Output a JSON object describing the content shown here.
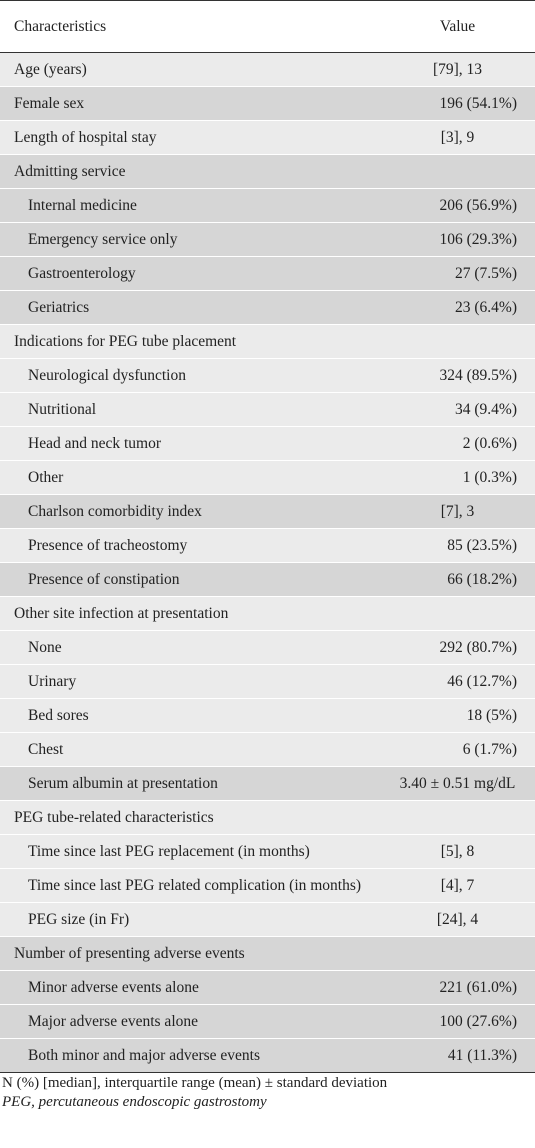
{
  "table": {
    "headers": {
      "characteristics": "Characteristics",
      "value": "Value"
    },
    "rows": [
      {
        "label": "Age (years)",
        "value": "[79], 13",
        "indent": false,
        "shade": "light",
        "align": "center"
      },
      {
        "label": "Female sex",
        "value": "196 (54.1%)",
        "indent": false,
        "shade": "shade",
        "align": "right"
      },
      {
        "label": "Length of hospital stay",
        "value": "[3], 9",
        "indent": false,
        "shade": "light",
        "align": "center"
      },
      {
        "label": "Admitting service",
        "value": "",
        "indent": false,
        "shade": "shade",
        "align": "right"
      },
      {
        "label": "Internal medicine",
        "value": "206 (56.9%)",
        "indent": true,
        "shade": "shade",
        "align": "right"
      },
      {
        "label": "Emergency service only",
        "value": "106 (29.3%)",
        "indent": true,
        "shade": "shade",
        "align": "right"
      },
      {
        "label": "Gastroenterology",
        "value": "27 (7.5%)",
        "indent": true,
        "shade": "shade",
        "align": "right"
      },
      {
        "label": "Geriatrics",
        "value": "23 (6.4%)",
        "indent": true,
        "shade": "shade",
        "align": "right"
      },
      {
        "label": "Indications for PEG tube placement",
        "value": "",
        "indent": false,
        "shade": "light",
        "align": "right"
      },
      {
        "label": "Neurological dysfunction",
        "value": "324 (89.5%)",
        "indent": true,
        "shade": "light",
        "align": "right"
      },
      {
        "label": "Nutritional",
        "value": "34 (9.4%)",
        "indent": true,
        "shade": "light",
        "align": "right"
      },
      {
        "label": "Head and neck tumor",
        "value": "2 (0.6%)",
        "indent": true,
        "shade": "light",
        "align": "right"
      },
      {
        "label": "Other",
        "value": "1 (0.3%)",
        "indent": true,
        "shade": "light",
        "align": "right"
      },
      {
        "label": "Charlson comorbidity index",
        "value": "[7], 3",
        "indent": true,
        "shade": "shade",
        "align": "center"
      },
      {
        "label": "Presence of tracheostomy",
        "value": "85 (23.5%)",
        "indent": true,
        "shade": "light",
        "align": "right"
      },
      {
        "label": "Presence of constipation",
        "value": "66 (18.2%)",
        "indent": true,
        "shade": "shade",
        "align": "right"
      },
      {
        "label": "Other site infection at presentation",
        "value": "",
        "indent": false,
        "shade": "light",
        "align": "right"
      },
      {
        "label": "None",
        "value": "292 (80.7%)",
        "indent": true,
        "shade": "light",
        "align": "right"
      },
      {
        "label": "Urinary",
        "value": "46 (12.7%)",
        "indent": true,
        "shade": "light",
        "align": "right"
      },
      {
        "label": "Bed sores",
        "value": "18 (5%)",
        "indent": true,
        "shade": "light",
        "align": "right"
      },
      {
        "label": "Chest",
        "value": "6 (1.7%)",
        "indent": true,
        "shade": "light",
        "align": "right"
      },
      {
        "label": "Serum albumin at presentation",
        "value": "3.40 ± 0.51 mg/dL",
        "indent": true,
        "shade": "shade",
        "align": "center"
      },
      {
        "label": "PEG tube-related characteristics",
        "value": "",
        "indent": false,
        "shade": "light",
        "align": "right"
      },
      {
        "label": "Time since last PEG replacement (in months)",
        "value": "[5], 8",
        "indent": true,
        "shade": "light",
        "align": "center"
      },
      {
        "label": "Time since last PEG related complication (in months)",
        "value": "[4], 7",
        "indent": true,
        "shade": "light",
        "align": "center"
      },
      {
        "label": "PEG size (in Fr)",
        "value": "[24], 4",
        "indent": true,
        "shade": "light",
        "align": "center"
      },
      {
        "label": "Number of presenting adverse events",
        "value": "",
        "indent": false,
        "shade": "shade",
        "align": "right"
      },
      {
        "label": "Minor adverse events alone",
        "value": "221 (61.0%)",
        "indent": true,
        "shade": "shade",
        "align": "right"
      },
      {
        "label": "Major adverse events alone",
        "value": "100 (27.6%)",
        "indent": true,
        "shade": "shade",
        "align": "right"
      },
      {
        "label": "Both minor and major adverse events",
        "value": "41 (11.3%)",
        "indent": true,
        "shade": "shade",
        "align": "right"
      }
    ]
  },
  "footnote": {
    "line1": "N (%) [median], interquartile range (mean) ± standard deviation",
    "line2": "PEG, percutaneous endoscopic gastrostomy"
  }
}
